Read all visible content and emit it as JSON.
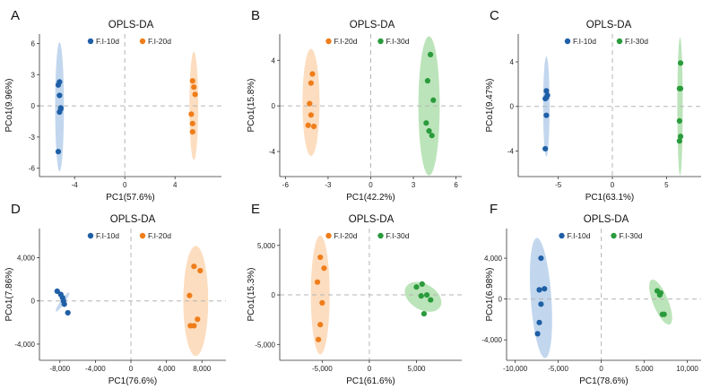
{
  "chart_data": [
    {
      "panel": "A",
      "type": "scatter",
      "title": "OPLS-DA",
      "xlabel": "PC1(57.6%)",
      "ylabel": "PCo1(9.96%)",
      "xlim": [
        -6.8,
        7.7
      ],
      "ylim": [
        -6.8,
        6.9
      ],
      "xticks": [
        -4,
        0,
        4
      ],
      "xtick_labels": [
        "-4",
        "0",
        "4"
      ],
      "yticks": [
        -6,
        -3,
        0,
        3,
        6
      ],
      "ytick_labels": [
        "-6",
        "-3",
        "0",
        "3",
        "6"
      ],
      "legend_position": "top-left",
      "series": [
        {
          "name": "F.I-10d",
          "color": "#1f5fa6",
          "ellipse_color": "#aec9e8",
          "x": [
            -5.3,
            -5.2,
            -5.2,
            -5.1,
            -5.2,
            -5.1,
            -5.3
          ],
          "y": [
            2.0,
            2.3,
            1.0,
            -0.3,
            -0.6,
            -0.2,
            -4.4
          ],
          "ellipse": {
            "cx": -5.2,
            "cy": -0.1,
            "rx": 0.35,
            "ry": 6.2
          }
        },
        {
          "name": "F.I-20d",
          "color": "#ef7d1a",
          "ellipse_color": "#fbd1a9",
          "x": [
            5.4,
            5.5,
            5.6,
            5.3,
            5.4,
            5.4
          ],
          "y": [
            2.4,
            1.8,
            1.1,
            -0.8,
            -1.7,
            -2.5
          ],
          "ellipse": {
            "cx": 5.5,
            "cy": 0,
            "rx": 0.35,
            "ry": 5.2
          }
        }
      ]
    },
    {
      "panel": "B",
      "type": "scatter",
      "title": "OPLS-DA",
      "xlabel": "PC1(42.2%)",
      "ylabel": "PCo1(15.8%)",
      "xlim": [
        -6.4,
        6.4
      ],
      "ylim": [
        -6.2,
        6.3
      ],
      "xticks": [
        -6,
        -3,
        0,
        3,
        6
      ],
      "xtick_labels": [
        "-6",
        "-3",
        "0",
        "3",
        "6"
      ],
      "yticks": [
        -4,
        0,
        4
      ],
      "ytick_labels": [
        "-4",
        "0",
        "4"
      ],
      "legend_position": "top-center",
      "series": [
        {
          "name": "F.I-20d",
          "color": "#ef7d1a",
          "ellipse_color": "#fbd1a9",
          "x": [
            -4.1,
            -4.2,
            -4.3,
            -4.2,
            -4.4,
            -4.0
          ],
          "y": [
            2.8,
            2.0,
            0.2,
            -0.8,
            -1.7,
            -1.8
          ],
          "ellipse": {
            "cx": -4.2,
            "cy": 0.3,
            "rx": 0.6,
            "ry": 4.7
          }
        },
        {
          "name": "F.I-30d",
          "color": "#2a9b3c",
          "ellipse_color": "#a6dba3",
          "x": [
            4.2,
            4.0,
            4.4,
            3.9,
            4.1,
            4.3
          ],
          "y": [
            4.5,
            2.2,
            0.5,
            -1.5,
            -2.2,
            -2.6
          ],
          "ellipse": {
            "cx": 4.1,
            "cy": 0,
            "rx": 0.75,
            "ry": 6.1
          }
        }
      ]
    },
    {
      "panel": "C",
      "type": "scatter",
      "title": "OPLS-DA",
      "xlabel": "PC1(63.1%)",
      "ylabel": "PCo1(9.47%)",
      "xlim": [
        -8.7,
        8.2
      ],
      "ylim": [
        -6.3,
        6.5
      ],
      "xticks": [
        -5,
        0,
        5
      ],
      "xtick_labels": [
        "-5",
        "0",
        "5"
      ],
      "yticks": [
        -4,
        0,
        4
      ],
      "ytick_labels": [
        "-4",
        "0",
        "4"
      ],
      "legend_position": "top-center",
      "series": [
        {
          "name": "F.I-10d",
          "color": "#1f5fa6",
          "ellipse_color": "#aec9e8",
          "x": [
            -6.1,
            -6.0,
            -6.1,
            -6.2,
            -6.1,
            -6.2
          ],
          "y": [
            1.4,
            1.0,
            0.8,
            0.7,
            -0.8,
            -3.8
          ],
          "ellipse": {
            "cx": -6.1,
            "cy": 0,
            "rx": 0.3,
            "ry": 4.5
          }
        },
        {
          "name": "F.I-30d",
          "color": "#2a9b3c",
          "ellipse_color": "#a6dba3",
          "x": [
            6.3,
            6.2,
            6.3,
            6.2,
            6.3,
            6.2
          ],
          "y": [
            3.9,
            1.6,
            1.6,
            -1.3,
            -2.7,
            -3.1
          ],
          "ellipse": {
            "cx": 6.25,
            "cy": 0,
            "rx": 0.25,
            "ry": 6.2
          }
        }
      ]
    },
    {
      "panel": "D",
      "type": "scatter",
      "title": "OPLS-DA",
      "xlabel": "PC1(76.6%)",
      "ylabel": "PCo1(7.86%)",
      "xlim": [
        -10300,
        10700
      ],
      "ylim": [
        -5500,
        6700
      ],
      "xticks": [
        -8000,
        -4000,
        0,
        4000,
        8000
      ],
      "xtick_labels": [
        "-8,000",
        "-4,000",
        "0",
        "4,000",
        "8,000"
      ],
      "yticks": [
        -4000,
        0,
        4000
      ],
      "ytick_labels": [
        "-4,000",
        "0",
        "4,000"
      ],
      "legend_position": "top-center",
      "series": [
        {
          "name": "F.I-10d",
          "color": "#1f5fa6",
          "ellipse_color": "#aec9e8",
          "x": [
            -8300,
            -7900,
            -7700,
            -7600,
            -7500,
            -7100
          ],
          "y": [
            900,
            600,
            300,
            0,
            -300,
            -1100
          ],
          "ellipse": {
            "cx": -7700,
            "cy": -100,
            "rx": 1300,
            "ry": 200,
            "angle": 55
          }
        },
        {
          "name": "F.I-20d",
          "color": "#ef7d1a",
          "ellipse_color": "#fbd1a9",
          "x": [
            7100,
            7800,
            6600,
            7500,
            6700,
            7100
          ],
          "y": [
            3200,
            2800,
            500,
            -1700,
            -2300,
            -2300
          ],
          "ellipse": {
            "cx": 7300,
            "cy": 0,
            "rx": 1400,
            "ry": 5100
          }
        }
      ]
    },
    {
      "panel": "E",
      "type": "scatter",
      "title": "OPLS-DA",
      "xlabel": "PC1(61.6%)",
      "ylabel": "PCo1(15.3%)",
      "xlim": [
        -9500,
        9800
      ],
      "ylim": [
        -6600,
        6700
      ],
      "xticks": [
        -5000,
        0,
        5000
      ],
      "xtick_labels": [
        "-5,000",
        "0",
        "5,000"
      ],
      "yticks": [
        -5000,
        0,
        5000
      ],
      "ytick_labels": [
        "-5,000",
        "0",
        "5,000"
      ],
      "legend_position": "top-center",
      "series": [
        {
          "name": "F.I-20d",
          "color": "#ef7d1a",
          "ellipse_color": "#fbd1a9",
          "x": [
            -5200,
            -4800,
            -5500,
            -5000,
            -5200,
            -5400
          ],
          "y": [
            3800,
            2700,
            1300,
            -800,
            -3000,
            -4500
          ],
          "ellipse": {
            "cx": -5200,
            "cy": 0,
            "rx": 1000,
            "ry": 6000
          }
        },
        {
          "name": "F.I-30d",
          "color": "#2a9b3c",
          "ellipse_color": "#a6dba3",
          "x": [
            5000,
            5600,
            5500,
            6100,
            6500,
            5800
          ],
          "y": [
            800,
            1100,
            -100,
            0,
            -500,
            -1900
          ],
          "ellipse": {
            "cx": 5700,
            "cy": -200,
            "rx": 2100,
            "ry": 1300,
            "angle": -30
          }
        }
      ]
    },
    {
      "panel": "F",
      "type": "scatter",
      "title": "OPLS-DA",
      "xlabel": "PC1(78.6%)",
      "ylabel": "PCo1(6.98%)",
      "xlim": [
        -11000,
        11600
      ],
      "ylim": [
        -6000,
        6900
      ],
      "xticks": [
        -10000,
        -5000,
        0,
        5000,
        10000
      ],
      "xtick_labels": [
        "-10,000",
        "-5,000",
        "0",
        "5,000",
        "10,000"
      ],
      "yticks": [
        -4000,
        0,
        4000
      ],
      "ytick_labels": [
        "-4,000",
        "0",
        "4,000"
      ],
      "legend_position": "top-center",
      "series": [
        {
          "name": "F.I-10d",
          "color": "#1f5fa6",
          "ellipse_color": "#aec9e8",
          "x": [
            -7000,
            -6600,
            -7200,
            -7000,
            -7200,
            -7400
          ],
          "y": [
            4000,
            1000,
            900,
            -500,
            -2300,
            -3400
          ],
          "ellipse": {
            "cx": -7000,
            "cy": 100,
            "rx": 1200,
            "ry": 5900,
            "angle": 4
          }
        },
        {
          "name": "F.I-30d",
          "color": "#2a9b3c",
          "ellipse_color": "#a6dba3",
          "x": [
            6500,
            6900,
            6800,
            7100,
            7300
          ],
          "y": [
            800,
            600,
            400,
            -1500,
            -1500
          ],
          "ellipse": {
            "cx": 6900,
            "cy": -300,
            "rx": 2800,
            "ry": 750,
            "angle": -68
          }
        }
      ]
    }
  ]
}
